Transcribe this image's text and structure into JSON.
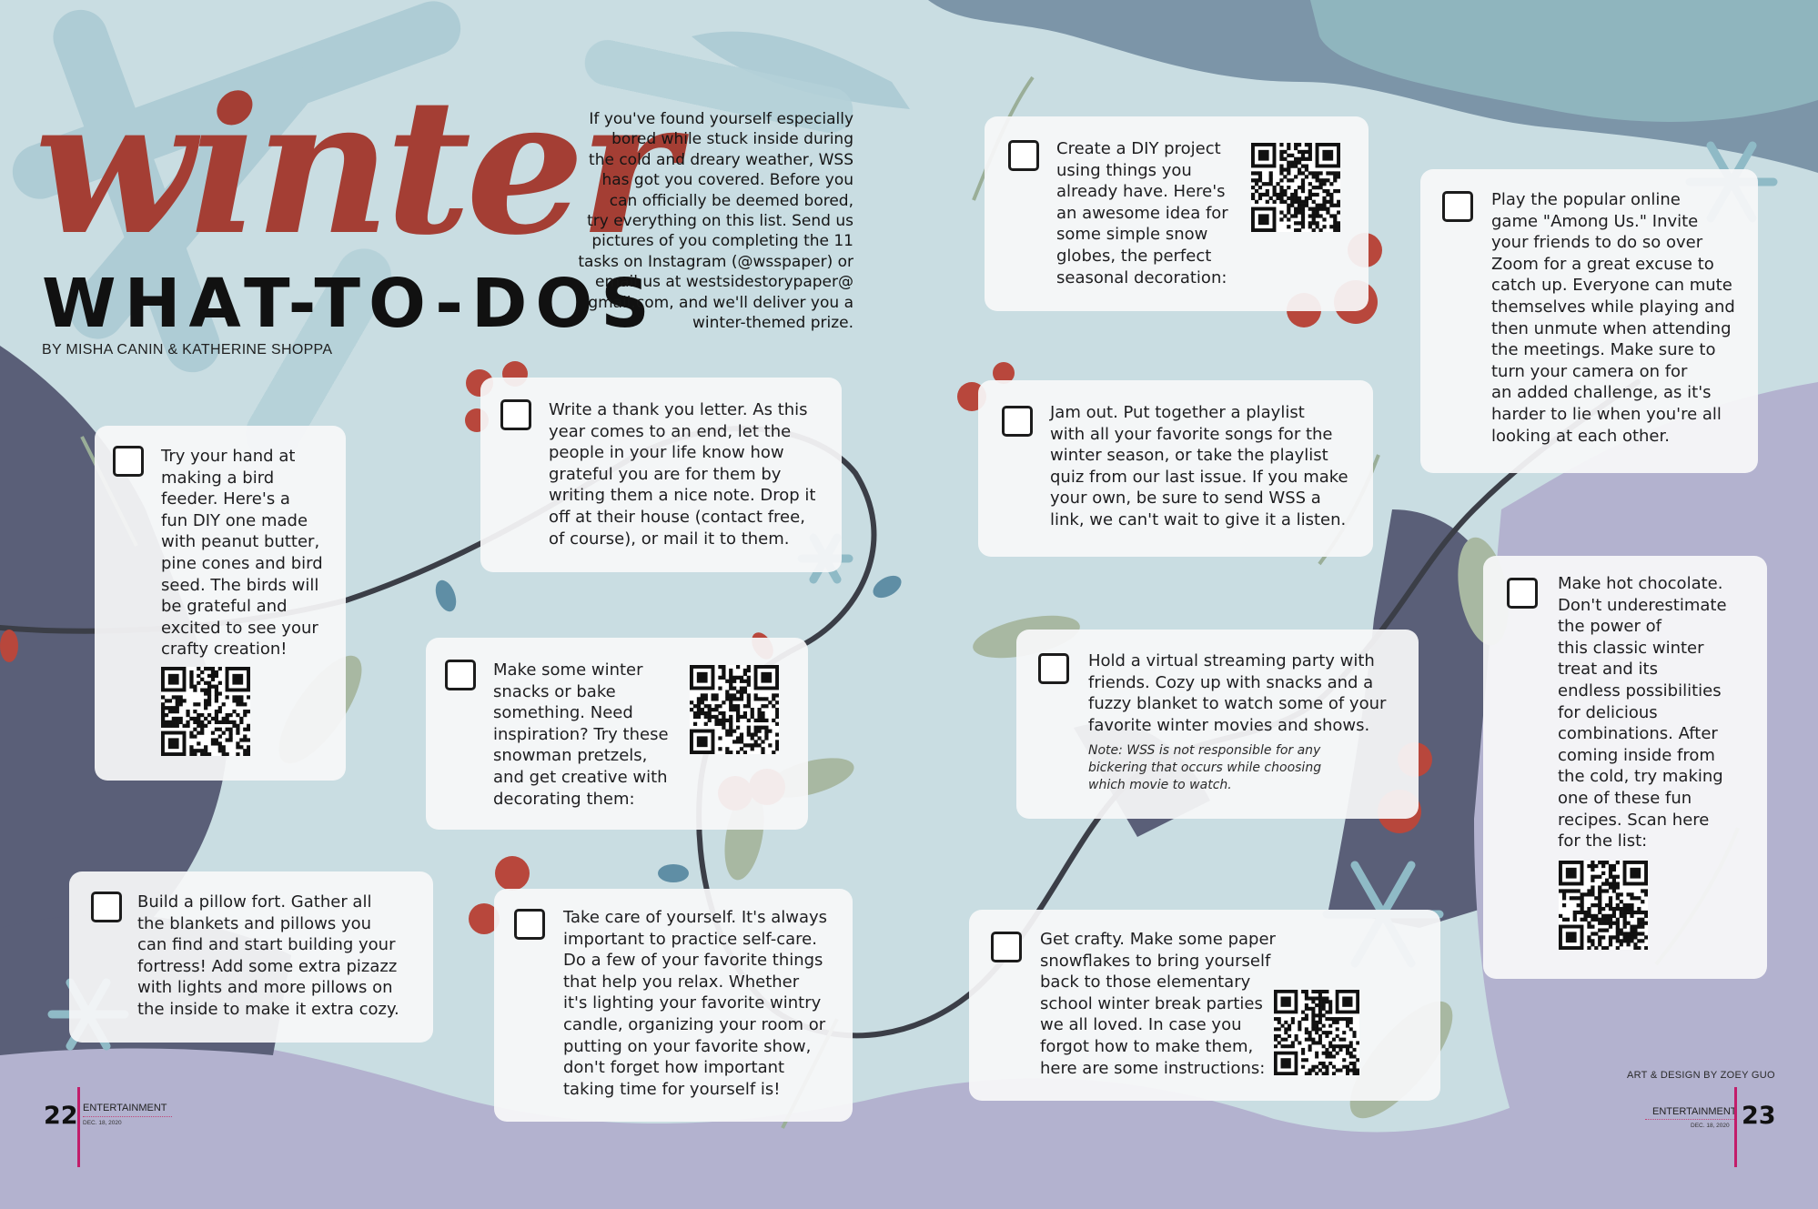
{
  "title": {
    "script": "winter",
    "block": "WHAT-TO-DOS",
    "byline": "BY MISHA CANIN & KATHERINE SHOPPA"
  },
  "intro": "If you've found yourself especially\nbored while stuck inside during\nthe cold and dreary weather, WSS\nhas got you covered. Before you\ncan officially be deemed bored,\ntry everything on this list. Send us\npictures of you completing the 11\ntasks on Instagram (@wsspaper) or\nemail us at westsidestorypaper@\ngmail.com, and we'll deliver you a\nwinter-themed prize.",
  "tasks": {
    "bird_feeder": "Try your hand at\nmaking a bird\nfeeder. Here's a\nfun DIY one made\nwith peanut butter,\npine cones and bird\nseed. The birds will\nbe grateful and\nexcited to see your\ncrafty creation!",
    "thank_you": "Write a thank you letter. As this\nyear comes to an end, let the\npeople in your life know how\ngrateful you are for them by\nwriting them a nice note. Drop it\noff at their house (contact free,\nof course), or mail it to them.",
    "snacks": "Make some winter\nsnacks or bake\nsomething. Need\ninspiration? Try these\nsnowman pretzels,\nand get creative with\ndecorating them:",
    "pillow_fort": "Build a pillow fort. Gather all\nthe blankets and pillows you\ncan find and start building your\nfortress! Add some extra pizazz\nwith lights and more pillows on\nthe inside to make it extra cozy.",
    "self_care": "Take care of yourself. It's always\nimportant to practice self-care.\nDo a few of your favorite things\nthat help you relax. Whether\nit's lighting your favorite wintry\ncandle, organizing your room or\nputting on your favorite show,\ndon't forget how important\ntaking time for yourself is!",
    "diy_project": "Create a DIY project\nusing things you\nalready have. Here's\nan awesome idea for\nsome simple snow\nglobes, the perfect\nseasonal decoration:",
    "jam_out": "Jam out. Put together a playlist\nwith all your favorite songs for the\nwinter season, or take the playlist\nquiz from our last issue. If you make\nyour own, be sure to send WSS a\nlink, we can't wait to give it a listen.",
    "streaming_party": "Hold a virtual streaming party with\nfriends. Cozy up with snacks and a\nfuzzy blanket to watch some of your\nfavorite winter movies and shows.",
    "streaming_note": "Note: WSS is not responsible for any\nbickering that occurs while choosing\nwhich movie to watch.",
    "get_crafty": "Get crafty. Make some paper\nsnowflakes to bring yourself\nback to those elementary\nschool winter break parties\nwe all loved. In case you\nforgot how to make them,\nhere are some instructions:",
    "among_us": "Play the popular online\ngame \"Among Us.\" Invite\nyour friends to do so over\nZoom for a great excuse to\ncatch up. Everyone can mute\nthemselves while playing and\nthen unmute when attending\nthe meetings. Make sure to\nturn your camera on for\nan added challenge, as it's\nharder to lie when you're all\nlooking at each other.",
    "hot_chocolate": "Make hot chocolate.\nDon't underestimate\nthe power of\nthis classic winter\ntreat and its\nendless possibilities\nfor delicious\ncombinations. After\ncoming inside from\nthe cold, try making\none of these fun\nrecipes. Scan here\nfor the list:"
  },
  "footer": {
    "left_page": "22",
    "right_page": "23",
    "section": "ENTERTAINMENT",
    "date": "DEC. 18, 2020",
    "credit": "ART & DESIGN BY ZOEY GUO"
  },
  "colors": {
    "title_red": "#a43e34",
    "berry_red": "#b8473c",
    "slate": "#5a5f78",
    "lavender": "#b3b2cf",
    "sky": "#c9dde2",
    "snowflake_blue": "#8fbac6",
    "leaf_green": "#a8b8a2",
    "accent_magenta": "#c21d6a"
  }
}
